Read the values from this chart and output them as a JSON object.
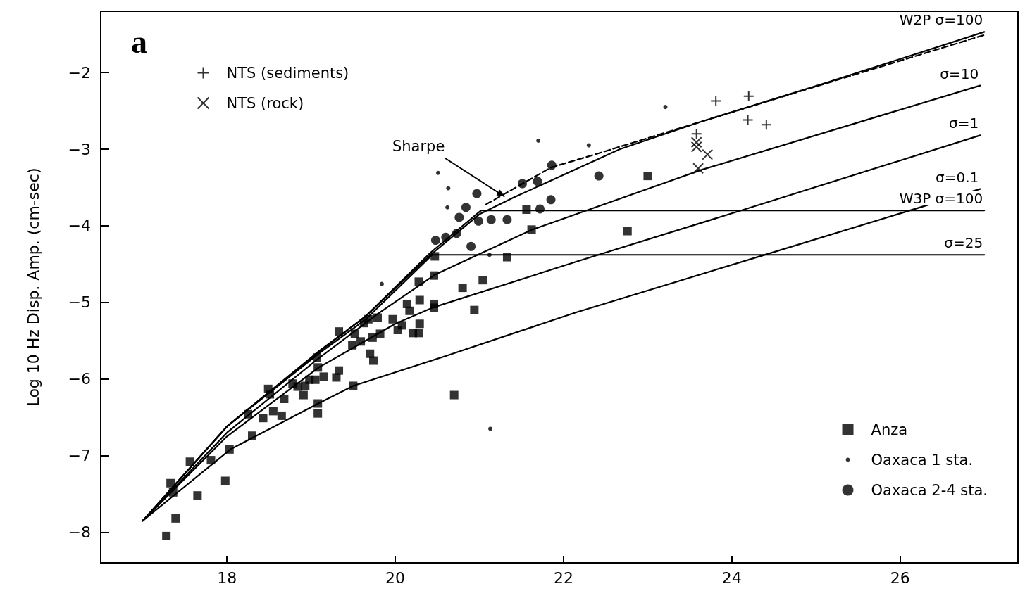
{
  "chart_data": {
    "type": "scatter",
    "ylabel": "Log 10 Hz Disp. Amp. (cm-sec)",
    "xlim": [
      16.5,
      27.4
    ],
    "ylim": [
      -8.4,
      -1.2
    ],
    "xticks": [
      18,
      20,
      22,
      24,
      26
    ],
    "yticks": [
      -8,
      -7,
      -6,
      -5,
      -4,
      -3,
      -2
    ],
    "grid": false,
    "legend": "top left",
    "annotations": [
      "a",
      {
        "text": "Sharpe",
        "x": 21.3,
        "y": -3.62
      }
    ],
    "series": [
      {
        "name": "NTS (sediments)",
        "type": "scatter",
        "marker": "plus",
        "color": "#000000",
        "x": [
          23.81,
          24.2,
          24.19,
          24.41,
          23.58
        ],
        "values": [
          -2.37,
          -2.31,
          -2.62,
          -2.68,
          -2.8
        ]
      },
      {
        "name": "NTS (rock)",
        "type": "scatter",
        "marker": "cross",
        "color": "#000000",
        "x": [
          23.58,
          23.58,
          23.71,
          23.6
        ],
        "values": [
          -2.91,
          -2.97,
          -3.07,
          -3.25
        ]
      },
      {
        "name": "Anza",
        "type": "scatter",
        "marker": "square",
        "color": "#000000",
        "x": [
          17.28,
          17.39,
          17.36,
          17.33,
          17.65,
          17.56,
          17.81,
          17.98,
          18.03,
          18.25,
          18.3,
          18.43,
          18.49,
          18.51,
          18.55,
          18.65,
          18.68,
          18.78,
          18.84,
          18.91,
          18.93,
          18.98,
          19.08,
          19.08,
          19.08,
          19.07,
          19.05,
          19.15,
          19.3,
          19.33,
          19.33,
          19.5,
          19.49,
          19.52,
          19.59,
          19.63,
          19.68,
          19.7,
          19.73,
          19.74,
          19.79,
          19.82,
          19.97,
          20.03,
          20.08,
          20.14,
          20.17,
          20.21,
          20.28,
          20.29,
          20.29,
          20.28,
          20.46,
          20.46,
          20.46,
          20.47,
          20.8,
          21.04,
          20.94,
          20.7,
          21.33,
          21.56,
          21.62,
          22.76,
          23.0
        ],
        "values": [
          -8.05,
          -7.82,
          -7.48,
          -7.36,
          -7.52,
          -7.08,
          -7.06,
          -7.33,
          -6.92,
          -6.46,
          -6.74,
          -6.51,
          -6.13,
          -6.2,
          -6.42,
          -6.48,
          -6.26,
          -6.06,
          -6.1,
          -6.21,
          -6.09,
          -6.01,
          -6.45,
          -6.32,
          -5.85,
          -5.72,
          -6.01,
          -5.97,
          -5.98,
          -5.89,
          -5.38,
          -6.09,
          -5.56,
          -5.41,
          -5.51,
          -5.27,
          -5.22,
          -5.67,
          -5.46,
          -5.76,
          -5.2,
          -5.41,
          -5.22,
          -5.36,
          -5.3,
          -5.02,
          -5.11,
          -5.4,
          -5.4,
          -5.28,
          -4.97,
          -4.73,
          -5.02,
          -5.07,
          -4.65,
          -4.4,
          -4.81,
          -4.71,
          -5.1,
          -6.21,
          -4.41,
          -3.79,
          -4.05,
          -4.07,
          -3.35
        ]
      },
      {
        "name": "Oaxaca 1 sta.",
        "type": "scatter",
        "marker": "circle",
        "color": "#000000",
        "x": [
          20.51,
          20.63,
          21.7,
          22.3,
          23.21,
          19.84,
          21.12,
          20.62,
          21.13
        ],
        "values": [
          -3.31,
          -3.51,
          -2.89,
          -2.95,
          -2.45,
          -4.76,
          -4.38,
          -3.76,
          -6.65
        ]
      },
      {
        "name": "Oaxaca 2-4 sta.",
        "type": "scatter",
        "marker": "circle",
        "color": "#000000",
        "x": [
          20.97,
          21.86,
          21.51,
          21.69,
          21.85,
          21.72,
          21.33,
          21.14,
          20.99,
          20.84,
          20.76,
          20.73,
          20.6,
          20.48,
          20.9,
          22.42
        ],
        "values": [
          -3.58,
          -3.21,
          -3.45,
          -3.42,
          -3.66,
          -3.78,
          -3.92,
          -3.92,
          -3.94,
          -3.76,
          -3.89,
          -4.1,
          -4.15,
          -4.19,
          -4.27,
          -3.35
        ]
      },
      {
        "name": "W2P σ=100",
        "type": "line",
        "marker": "none",
        "line_style": "solid",
        "color": "#000000",
        "x": [
          17,
          18,
          19.09,
          19.65,
          20.42,
          21,
          21.41,
          22.67,
          23.64,
          25.13,
          27
        ],
        "values": [
          -7.85,
          -6.62,
          -5.64,
          -5.18,
          -4.38,
          -3.85,
          -3.63,
          -3.0,
          -2.64,
          -2.13,
          -1.47
        ]
      },
      {
        "type": "line",
        "marker": "none",
        "line_style": "dashed",
        "color": "#000000",
        "x": [
          21.08,
          21.85,
          22.4,
          23.37,
          27
        ],
        "values": [
          -3.72,
          -3.24,
          -3.06,
          -2.73,
          -1.51
        ]
      },
      {
        "name": "σ=10",
        "type": "line",
        "marker": "none",
        "line_style": "solid",
        "color": "#000000",
        "x": [
          17,
          18,
          19.09,
          19.78,
          20.47,
          21.63,
          23.64,
          26.95
        ],
        "values": [
          -7.85,
          -6.7,
          -5.73,
          -5.16,
          -4.64,
          -4.05,
          -3.27,
          -2.17
        ]
      },
      {
        "name": "σ=1",
        "type": "line",
        "marker": "none",
        "line_style": "solid",
        "color": "#000000",
        "x": [
          17,
          18,
          19.09,
          20,
          20.44,
          22.15,
          24.14,
          26.95
        ],
        "values": [
          -7.85,
          -6.75,
          -5.85,
          -5.28,
          -5.07,
          -4.47,
          -3.79,
          -2.82
        ]
      },
      {
        "name": "σ=0.1",
        "type": "line",
        "marker": "none",
        "line_style": "solid",
        "color": "#000000",
        "x": [
          17,
          18.04,
          19.07,
          19.5,
          20.6,
          22.15,
          24.36,
          26.95
        ],
        "values": [
          -7.85,
          -6.92,
          -6.33,
          -6.09,
          -5.7,
          -5.13,
          -4.39,
          -3.52
        ]
      },
      {
        "name": "W3P σ=100",
        "type": "line",
        "marker": "none",
        "line_style": "solid",
        "color": "#000000",
        "x": [
          17,
          18,
          19.09,
          19.65,
          20.42,
          21.02,
          27
        ],
        "values": [
          -7.85,
          -6.62,
          -5.65,
          -5.18,
          -4.35,
          -3.8,
          -3.8
        ]
      },
      {
        "name": "σ=25",
        "type": "line",
        "marker": "none",
        "line_style": "solid",
        "color": "#000000",
        "x": [
          17,
          18,
          19.09,
          19.65,
          20.44,
          27
        ],
        "values": [
          -7.85,
          -6.62,
          -5.67,
          -5.22,
          -4.38,
          -4.38
        ]
      }
    ]
  }
}
